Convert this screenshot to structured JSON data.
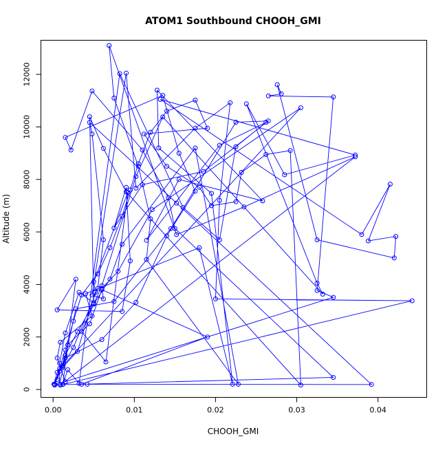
{
  "chart_data": {
    "type": "line",
    "title": "ATOM1 Southbound CHOOH_GMI",
    "xlabel": "CHOOH_GMI",
    "ylabel": "Altitude (m)",
    "xlim": [
      -0.0015,
      0.046
    ],
    "ylim": [
      -300,
      13300
    ],
    "x_ticks": [
      0.0,
      0.01,
      0.02,
      0.03,
      0.04
    ],
    "x_tick_labels": [
      "0.00",
      "0.01",
      "0.02",
      "0.03",
      "0.04"
    ],
    "y_ticks": [
      0,
      2000,
      4000,
      6000,
      8000,
      10000,
      12000
    ],
    "y_tick_labels": [
      "0",
      "2000",
      "4000",
      "6000",
      "8000",
      "10000",
      "12000"
    ],
    "grid": false,
    "legend": "none",
    "series": [
      {
        "color": "#0000ff",
        "marker": "open-circle",
        "points": [
          [
            0.0002,
            200
          ],
          [
            0.0008,
            800
          ],
          [
            0.0015,
            1500
          ],
          [
            0.0025,
            2600
          ],
          [
            0.0035,
            3600
          ],
          [
            0.0055,
            4400
          ],
          [
            0.007,
            5400
          ],
          [
            0.0085,
            6600
          ],
          [
            0.0095,
            7600
          ],
          [
            0.0105,
            8600
          ],
          [
            0.012,
            9800
          ],
          [
            0.014,
            10600
          ],
          [
            0.0175,
            11020
          ],
          [
            0.019,
            9950
          ],
          [
            0.0112,
            9730
          ],
          [
            0.014,
            8500
          ],
          [
            0.018,
            7700
          ],
          [
            0.0195,
            7000
          ],
          [
            0.0225,
            7150
          ],
          [
            0.0232,
            8270
          ],
          [
            0.0262,
            8950
          ],
          [
            0.0292,
            9100
          ],
          [
            0.0305,
            170
          ],
          [
            0.009,
            7530
          ],
          [
            0.0062,
            9180
          ],
          [
            0.0045,
            10390
          ],
          [
            0.005,
            3300
          ],
          [
            0.0032,
            3700
          ],
          [
            0.0015,
            2150
          ],
          [
            0.0008,
            1000
          ],
          [
            0.0008,
            200
          ],
          [
            0.0028,
            3070
          ],
          [
            0.0075,
            3350
          ],
          [
            0.0145,
            6130
          ],
          [
            0.0225,
            10180
          ],
          [
            0.0265,
            10230
          ],
          [
            0.0185,
            8300
          ],
          [
            0.011,
            7800
          ],
          [
            0.0075,
            6150
          ],
          [
            0.009,
            7700
          ],
          [
            0.0095,
            4900
          ],
          [
            0.0085,
            2970
          ],
          [
            0.0005,
            3030
          ],
          [
            0.0028,
            4200
          ],
          [
            0.0012,
            200
          ],
          [
            0.0018,
            750
          ],
          [
            0.0032,
            230
          ],
          [
            0.0082,
            12030
          ],
          [
            0.016,
            6930
          ],
          [
            0.0205,
            5700
          ],
          [
            0.0225,
            9250
          ],
          [
            0.0262,
            10170
          ],
          [
            0.0205,
            9300
          ],
          [
            0.0115,
            5680
          ],
          [
            0.0155,
            8000
          ],
          [
            0.0258,
            7180
          ],
          [
            0.0128,
            11400
          ],
          [
            0.013,
            9200
          ],
          [
            0.0195,
            7470
          ],
          [
            0.0221,
            200
          ],
          [
            0.018,
            5400
          ],
          [
            0.004,
            3650
          ],
          [
            0.0048,
            2800
          ],
          [
            0.0009,
            1800
          ],
          [
            0.0005,
            1200
          ],
          [
            0.0015,
            300
          ],
          [
            0.0345,
            3510
          ],
          [
            0.0325,
            3770
          ],
          [
            0.0345,
            11140
          ],
          [
            0.0265,
            11180
          ],
          [
            0.0281,
            11260
          ],
          [
            0.0276,
            11610
          ],
          [
            0.0325,
            5700
          ],
          [
            0.042,
            5010
          ],
          [
            0.0422,
            5830
          ],
          [
            0.0388,
            5660
          ],
          [
            0.0415,
            7820
          ],
          [
            0.038,
            5900
          ],
          [
            0.0132,
            11050
          ],
          [
            0.0372,
            8930
          ],
          [
            0.0285,
            8180
          ],
          [
            0.0238,
            10880
          ],
          [
            0.0325,
            4050
          ],
          [
            0.0332,
            3630
          ],
          [
            0.0135,
            10380
          ],
          [
            0.0102,
            8110
          ],
          [
            0.006,
            3950
          ],
          [
            0.0035,
            2210
          ],
          [
            0.0065,
            1050
          ],
          [
            0.0092,
            7500
          ],
          [
            0.005,
            4100
          ],
          [
            0.0052,
            3700
          ],
          [
            0.003,
            1450
          ],
          [
            0.0012,
            850
          ],
          [
            0.0005,
            650
          ],
          [
            0.0001,
            200
          ],
          [
            0.0015,
            1200
          ],
          [
            0.006,
            1900
          ],
          [
            0.0102,
            3320
          ],
          [
            0.014,
            5850
          ],
          [
            0.0175,
            7550
          ],
          [
            0.0155,
            9000
          ],
          [
            0.0135,
            11200
          ],
          [
            0.0015,
            9600
          ],
          [
            0.0022,
            9120
          ],
          [
            0.0048,
            11370
          ],
          [
            0.011,
            9120
          ],
          [
            0.0142,
            7300
          ],
          [
            0.015,
            6130
          ],
          [
            0.0345,
            460
          ],
          [
            0.0035,
            200
          ],
          [
            0.019,
            2000
          ],
          [
            0.006,
            3800
          ],
          [
            0.0045,
            2500
          ],
          [
            0.0018,
            1700
          ],
          [
            0.0012,
            900
          ],
          [
            0.0305,
            10730
          ],
          [
            0.0122,
            6850
          ],
          [
            0.008,
            4500
          ],
          [
            0.006,
            3850
          ],
          [
            0.0062,
            3450
          ],
          [
            0.0048,
            3600
          ],
          [
            0.009,
            12050
          ],
          [
            0.0102,
            7670
          ],
          [
            0.0175,
            9950
          ],
          [
            0.0218,
            10920
          ],
          [
            0.0205,
            7200
          ],
          [
            0.02,
            3450
          ],
          [
            0.0442,
            3380
          ],
          [
            0.0012,
            190
          ],
          [
            0.0042,
            200
          ],
          [
            0.0392,
            190
          ],
          [
            0.0152,
            7100
          ],
          [
            0.0045,
            10170
          ],
          [
            0.0048,
            9730
          ],
          [
            0.0062,
            5700
          ],
          [
            0.0055,
            3850
          ],
          [
            0.0025,
            1600
          ],
          [
            0.0008,
            700
          ],
          [
            0.0002,
            170
          ],
          [
            0.0009,
            170
          ],
          [
            0.0372,
            8860
          ],
          [
            0.0235,
            6950
          ],
          [
            0.0152,
            5900
          ],
          [
            0.0069,
            13100
          ],
          [
            0.0075,
            11100
          ],
          [
            0.0105,
            8500
          ],
          [
            0.012,
            6500
          ],
          [
            0.0115,
            4950
          ],
          [
            0.0228,
            200
          ],
          [
            0.0175,
            9200
          ],
          [
            0.0085,
            5530
          ],
          [
            0.007,
            4200
          ],
          [
            0.005,
            3250
          ],
          [
            0.003,
            2200
          ],
          [
            0.0015,
            1300
          ],
          [
            0.0005,
            380
          ]
        ]
      }
    ]
  }
}
